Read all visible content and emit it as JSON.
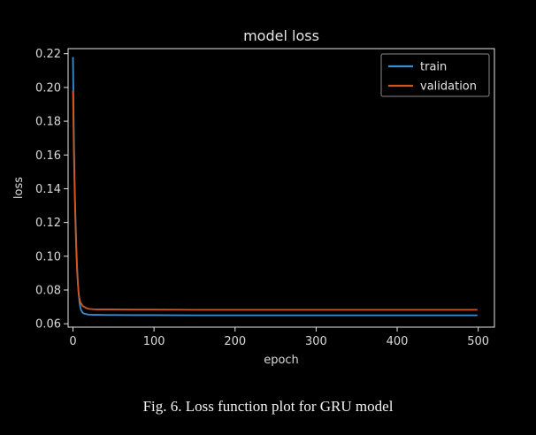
{
  "caption": "Fig. 6.  Loss function plot for GRU model",
  "chart_data": {
    "type": "line",
    "title": "model loss",
    "xlabel": "epoch",
    "ylabel": "loss",
    "xlim": [
      -6,
      520
    ],
    "ylim": [
      0.058,
      0.223
    ],
    "xticks": [
      0,
      100,
      200,
      300,
      400,
      500
    ],
    "yticks": [
      0.06,
      0.08,
      0.1,
      0.12,
      0.14,
      0.16,
      0.18,
      0.2,
      0.22
    ],
    "ytick_labels": [
      "0.06",
      "0.08",
      "0.10",
      "0.12",
      "0.14",
      "0.16",
      "0.18",
      "0.20",
      "0.22"
    ],
    "xtick_labels": [
      "0",
      "100",
      "200",
      "300",
      "400",
      "500"
    ],
    "legend_position": "top-right",
    "grid": false,
    "series": [
      {
        "name": "train",
        "color": "#3a8ed0",
        "x": [
          0,
          1,
          2,
          3,
          4,
          5,
          6,
          7,
          8,
          9,
          10,
          12,
          14,
          16,
          18,
          20,
          25,
          30,
          40,
          50,
          75,
          100,
          150,
          200,
          250,
          300,
          350,
          400,
          450,
          499
        ],
        "y": [
          0.218,
          0.175,
          0.145,
          0.125,
          0.108,
          0.095,
          0.085,
          0.078,
          0.073,
          0.07,
          0.068,
          0.0665,
          0.066,
          0.0658,
          0.0655,
          0.0654,
          0.0653,
          0.0653,
          0.0652,
          0.0652,
          0.0651,
          0.0651,
          0.065,
          0.065,
          0.065,
          0.065,
          0.065,
          0.065,
          0.065,
          0.065
        ]
      },
      {
        "name": "validation",
        "color": "#d2561c",
        "x": [
          0,
          1,
          2,
          3,
          4,
          5,
          6,
          7,
          8,
          9,
          10,
          12,
          14,
          16,
          18,
          20,
          25,
          30,
          40,
          50,
          75,
          100,
          150,
          200,
          250,
          300,
          350,
          400,
          450,
          499
        ],
        "y": [
          0.198,
          0.165,
          0.14,
          0.12,
          0.104,
          0.092,
          0.084,
          0.078,
          0.075,
          0.073,
          0.072,
          0.0705,
          0.07,
          0.0695,
          0.069,
          0.0688,
          0.0686,
          0.0685,
          0.0685,
          0.0685,
          0.0684,
          0.0684,
          0.0683,
          0.0683,
          0.0683,
          0.0683,
          0.0683,
          0.0683,
          0.0683,
          0.0683
        ]
      }
    ]
  }
}
